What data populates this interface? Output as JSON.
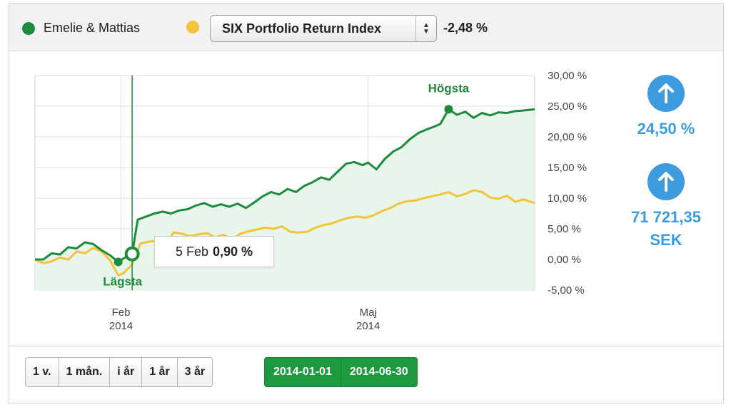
{
  "legend": {
    "series1": {
      "label": "Emelie & Mattias",
      "color": "#1d8b3c"
    },
    "series2": {
      "color": "#f3c33a"
    },
    "index_select": {
      "label": "SIX Portfolio Return Index"
    },
    "index_change": "-2,48 %"
  },
  "tooltip": {
    "date": "5 Feb",
    "value": "0,90 %"
  },
  "stats": {
    "return_pct": "24,50 %",
    "return_amount_line1": "71 721,35",
    "return_amount_line2": "SEK",
    "icon": "arrow-up-icon",
    "color": "#3d9be0"
  },
  "period_buttons": [
    "1 v.",
    "1 mån.",
    "i år",
    "1 år",
    "3 år"
  ],
  "date_range": {
    "start": "2014-01-01",
    "end": "2014-06-30"
  },
  "chart_data": {
    "type": "line",
    "x_range": [
      "2014-01-01",
      "2014-06-30"
    ],
    "ylim": [
      -5,
      30
    ],
    "y_ticks": [
      "30,00 %",
      "25,00 %",
      "20,00 %",
      "15,00 %",
      "10,00 %",
      "5,00 %",
      "0,00 %",
      "-5,00 %"
    ],
    "y_tick_values": [
      30,
      25,
      20,
      15,
      10,
      5,
      0,
      -5
    ],
    "x_ticks": [
      {
        "month": "Feb",
        "year": "2014",
        "day": 31
      },
      {
        "month": "Maj",
        "year": "2014",
        "day": 120
      }
    ],
    "grid": true,
    "area_fill": "#e7f5ea",
    "annotations": {
      "high": "Högsta",
      "low": "Lägsta",
      "high_day": 149,
      "low_day": 30,
      "cursor_day": 35
    },
    "series": [
      {
        "color": "#1d8b3c",
        "points": [
          [
            0,
            0.0
          ],
          [
            3,
            0.0
          ],
          [
            6,
            1.0
          ],
          [
            9,
            0.8
          ],
          [
            12,
            2.0
          ],
          [
            15,
            1.8
          ],
          [
            18,
            2.8
          ],
          [
            21,
            2.5
          ],
          [
            24,
            1.5
          ],
          [
            27,
            0.7
          ],
          [
            30,
            -0.4
          ],
          [
            32,
            0.2
          ],
          [
            35,
            0.9
          ],
          [
            37,
            6.5
          ],
          [
            40,
            7.0
          ],
          [
            43,
            7.5
          ],
          [
            46,
            7.8
          ],
          [
            49,
            7.5
          ],
          [
            52,
            8.0
          ],
          [
            55,
            8.2
          ],
          [
            58,
            8.8
          ],
          [
            61,
            9.2
          ],
          [
            64,
            8.6
          ],
          [
            67,
            9.0
          ],
          [
            70,
            8.6
          ],
          [
            73,
            9.1
          ],
          [
            76,
            8.4
          ],
          [
            79,
            9.3
          ],
          [
            82,
            10.3
          ],
          [
            85,
            11.0
          ],
          [
            88,
            10.6
          ],
          [
            91,
            11.5
          ],
          [
            94,
            11.0
          ],
          [
            97,
            12.0
          ],
          [
            100,
            12.6
          ],
          [
            103,
            13.4
          ],
          [
            106,
            13.0
          ],
          [
            109,
            14.3
          ],
          [
            112,
            15.6
          ],
          [
            115,
            15.9
          ],
          [
            118,
            15.4
          ],
          [
            120,
            15.8
          ],
          [
            123,
            14.7
          ],
          [
            126,
            16.4
          ],
          [
            129,
            17.6
          ],
          [
            132,
            18.3
          ],
          [
            135,
            19.6
          ],
          [
            138,
            20.6
          ],
          [
            141,
            21.2
          ],
          [
            144,
            21.7
          ],
          [
            146,
            22.1
          ],
          [
            149,
            24.5
          ],
          [
            152,
            23.6
          ],
          [
            155,
            24.1
          ],
          [
            158,
            23.1
          ],
          [
            161,
            23.9
          ],
          [
            164,
            23.5
          ],
          [
            167,
            24.0
          ],
          [
            170,
            23.9
          ],
          [
            173,
            24.2
          ],
          [
            176,
            24.3
          ],
          [
            180,
            24.5
          ]
        ]
      },
      {
        "color": "#f3c33a",
        "points": [
          [
            0,
            0.0
          ],
          [
            3,
            -0.6
          ],
          [
            6,
            -0.3
          ],
          [
            9,
            0.3
          ],
          [
            12,
            0.0
          ],
          [
            15,
            1.3
          ],
          [
            18,
            1.0
          ],
          [
            21,
            1.9
          ],
          [
            24,
            1.3
          ],
          [
            27,
            -0.1
          ],
          [
            30,
            -2.6
          ],
          [
            32,
            -2.2
          ],
          [
            35,
            -0.8
          ],
          [
            38,
            2.6
          ],
          [
            41,
            2.9
          ],
          [
            44,
            3.1
          ],
          [
            47,
            2.5
          ],
          [
            50,
            4.4
          ],
          [
            53,
            4.2
          ],
          [
            56,
            3.8
          ],
          [
            59,
            4.1
          ],
          [
            62,
            4.3
          ],
          [
            65,
            3.6
          ],
          [
            68,
            4.0
          ],
          [
            71,
            3.3
          ],
          [
            74,
            4.2
          ],
          [
            77,
            4.6
          ],
          [
            80,
            4.9
          ],
          [
            83,
            5.2
          ],
          [
            86,
            5.0
          ],
          [
            89,
            5.4
          ],
          [
            92,
            4.5
          ],
          [
            95,
            4.4
          ],
          [
            98,
            4.5
          ],
          [
            101,
            5.2
          ],
          [
            104,
            5.6
          ],
          [
            107,
            5.9
          ],
          [
            110,
            6.4
          ],
          [
            113,
            6.8
          ],
          [
            116,
            7.0
          ],
          [
            119,
            6.8
          ],
          [
            122,
            7.2
          ],
          [
            125,
            7.9
          ],
          [
            128,
            8.4
          ],
          [
            131,
            9.1
          ],
          [
            134,
            9.5
          ],
          [
            137,
            9.6
          ],
          [
            140,
            10.0
          ],
          [
            143,
            10.3
          ],
          [
            146,
            10.6
          ],
          [
            149,
            11.0
          ],
          [
            152,
            10.3
          ],
          [
            155,
            10.7
          ],
          [
            158,
            11.3
          ],
          [
            161,
            11.0
          ],
          [
            164,
            10.1
          ],
          [
            167,
            9.9
          ],
          [
            170,
            10.4
          ],
          [
            173,
            9.4
          ],
          [
            176,
            9.8
          ],
          [
            180,
            9.2
          ]
        ]
      }
    ]
  }
}
